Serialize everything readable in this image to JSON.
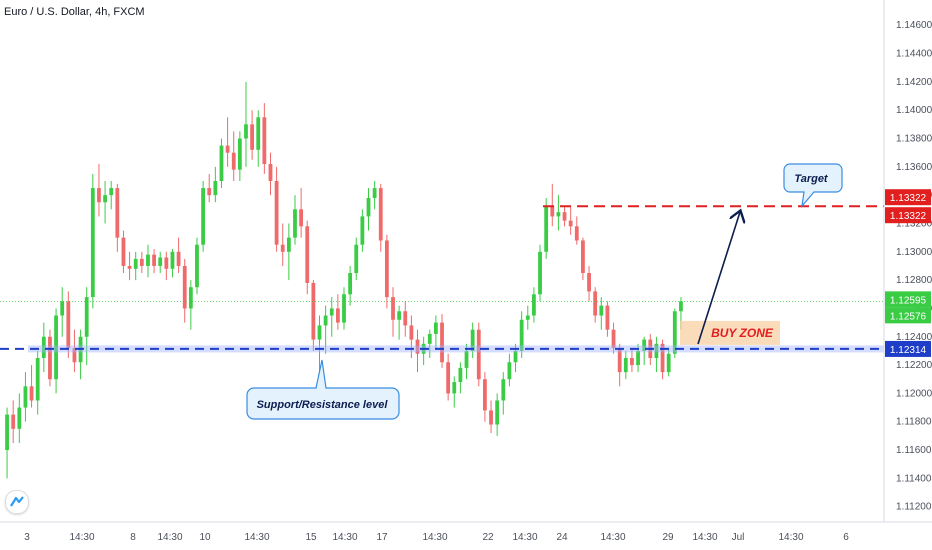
{
  "symbol": "Euro / U.S. Dollar, 4h, FXCM",
  "colors": {
    "up": "#3bcc45",
    "down": "#ef6a6a",
    "resistance": "#e21f1f",
    "support": "#1e3ec8",
    "arrow": "#0d1d4f",
    "zone": "#f8cfa3"
  },
  "chart_data": {
    "type": "candlestick",
    "ylim": [
      1.1112,
      1.1475
    ],
    "yticks": [
      "1.14600",
      "1.14400",
      "1.14200",
      "1.14000",
      "1.13800",
      "1.13600",
      "1.13400",
      "1.13200",
      "1.13000",
      "1.12800",
      "1.12600",
      "1.12400",
      "1.12200",
      "1.12000",
      "1.11800",
      "1.11600",
      "1.11400",
      "1.11200"
    ],
    "xticks": [
      "3",
      "14:30",
      "8",
      "14:30",
      "10",
      "14:30",
      "15",
      "14:30",
      "17",
      "14:30",
      "22",
      "14:30",
      "24",
      "14:30",
      "29",
      "14:30",
      "Jul",
      "14:30",
      "6"
    ],
    "candles": [
      [
        1.116,
        1.119,
        1.114,
        1.1185
      ],
      [
        1.1185,
        1.1195,
        1.1165,
        1.1175
      ],
      [
        1.1175,
        1.12,
        1.1165,
        1.119
      ],
      [
        1.119,
        1.1215,
        1.118,
        1.1205
      ],
      [
        1.1205,
        1.122,
        1.119,
        1.1195
      ],
      [
        1.1195,
        1.123,
        1.1185,
        1.1225
      ],
      [
        1.1225,
        1.125,
        1.1215,
        1.124
      ],
      [
        1.124,
        1.1245,
        1.1205,
        1.121
      ],
      [
        1.121,
        1.126,
        1.12,
        1.1255
      ],
      [
        1.1255,
        1.1275,
        1.124,
        1.1265
      ],
      [
        1.1265,
        1.1272,
        1.1225,
        1.1232
      ],
      [
        1.1232,
        1.1245,
        1.1215,
        1.1222
      ],
      [
        1.1222,
        1.1245,
        1.121,
        1.124
      ],
      [
        1.124,
        1.1275,
        1.122,
        1.1268
      ],
      [
        1.1268,
        1.1355,
        1.126,
        1.1345
      ],
      [
        1.1345,
        1.1362,
        1.1325,
        1.1335
      ],
      [
        1.1335,
        1.135,
        1.132,
        1.134
      ],
      [
        1.134,
        1.135,
        1.133,
        1.1345
      ],
      [
        1.1345,
        1.1348,
        1.13,
        1.131
      ],
      [
        1.131,
        1.1315,
        1.1285,
        1.129
      ],
      [
        1.129,
        1.13,
        1.128,
        1.1288
      ],
      [
        1.1288,
        1.13,
        1.128,
        1.1295
      ],
      [
        1.1295,
        1.13,
        1.1285,
        1.129
      ],
      [
        1.129,
        1.1305,
        1.1282,
        1.1298
      ],
      [
        1.1298,
        1.1302,
        1.1285,
        1.129
      ],
      [
        1.129,
        1.13,
        1.1285,
        1.1296
      ],
      [
        1.1296,
        1.13,
        1.128,
        1.1288
      ],
      [
        1.1288,
        1.1302,
        1.1282,
        1.13
      ],
      [
        1.13,
        1.131,
        1.1285,
        1.129
      ],
      [
        1.129,
        1.1295,
        1.125,
        1.126
      ],
      [
        1.126,
        1.128,
        1.1245,
        1.1275
      ],
      [
        1.1275,
        1.131,
        1.127,
        1.1305
      ],
      [
        1.1305,
        1.135,
        1.13,
        1.1345
      ],
      [
        1.1345,
        1.1355,
        1.1335,
        1.134
      ],
      [
        1.134,
        1.136,
        1.1335,
        1.135
      ],
      [
        1.135,
        1.138,
        1.1345,
        1.1375
      ],
      [
        1.1375,
        1.1395,
        1.136,
        1.137
      ],
      [
        1.137,
        1.1385,
        1.135,
        1.1358
      ],
      [
        1.1358,
        1.1385,
        1.135,
        1.138
      ],
      [
        1.138,
        1.142,
        1.136,
        1.139
      ],
      [
        1.139,
        1.14,
        1.1365,
        1.1372
      ],
      [
        1.1372,
        1.14,
        1.136,
        1.1395
      ],
      [
        1.1395,
        1.1405,
        1.1355,
        1.1362
      ],
      [
        1.1362,
        1.137,
        1.134,
        1.135
      ],
      [
        1.135,
        1.136,
        1.13,
        1.1305
      ],
      [
        1.1305,
        1.132,
        1.129,
        1.13
      ],
      [
        1.13,
        1.132,
        1.128,
        1.131
      ],
      [
        1.131,
        1.134,
        1.1305,
        1.133
      ],
      [
        1.133,
        1.1345,
        1.131,
        1.1318
      ],
      [
        1.1318,
        1.1322,
        1.127,
        1.1278
      ],
      [
        1.1278,
        1.128,
        1.123,
        1.1238
      ],
      [
        1.1238,
        1.1255,
        1.1212,
        1.1248
      ],
      [
        1.1248,
        1.1262,
        1.1228,
        1.1255
      ],
      [
        1.1255,
        1.1268,
        1.124,
        1.126
      ],
      [
        1.126,
        1.127,
        1.1245,
        1.125
      ],
      [
        1.125,
        1.1275,
        1.1245,
        1.127
      ],
      [
        1.127,
        1.129,
        1.1262,
        1.1285
      ],
      [
        1.1285,
        1.131,
        1.128,
        1.1305
      ],
      [
        1.1305,
        1.133,
        1.13,
        1.1325
      ],
      [
        1.1325,
        1.1345,
        1.1315,
        1.1338
      ],
      [
        1.1338,
        1.135,
        1.133,
        1.1345
      ],
      [
        1.1345,
        1.1348,
        1.13,
        1.1308
      ],
      [
        1.1308,
        1.1312,
        1.126,
        1.1268
      ],
      [
        1.1268,
        1.1275,
        1.124,
        1.1252
      ],
      [
        1.1252,
        1.1262,
        1.1238,
        1.1258
      ],
      [
        1.1258,
        1.1265,
        1.124,
        1.1248
      ],
      [
        1.1248,
        1.1255,
        1.1225,
        1.1238
      ],
      [
        1.1238,
        1.1245,
        1.1215,
        1.1228
      ],
      [
        1.1228,
        1.124,
        1.122,
        1.1235
      ],
      [
        1.1235,
        1.1245,
        1.1225,
        1.1242
      ],
      [
        1.1242,
        1.1255,
        1.1232,
        1.125
      ],
      [
        1.125,
        1.1256,
        1.1218,
        1.1222
      ],
      [
        1.1222,
        1.1228,
        1.1195,
        1.12
      ],
      [
        1.12,
        1.1212,
        1.119,
        1.1208
      ],
      [
        1.1208,
        1.1222,
        1.12,
        1.1218
      ],
      [
        1.1218,
        1.1235,
        1.121,
        1.123
      ],
      [
        1.123,
        1.125,
        1.1225,
        1.1245
      ],
      [
        1.1245,
        1.125,
        1.1205,
        1.121
      ],
      [
        1.121,
        1.1215,
        1.118,
        1.1188
      ],
      [
        1.1188,
        1.1195,
        1.1172,
        1.1178
      ],
      [
        1.1178,
        1.12,
        1.117,
        1.1195
      ],
      [
        1.1195,
        1.1215,
        1.1185,
        1.121
      ],
      [
        1.121,
        1.1228,
        1.1205,
        1.1222
      ],
      [
        1.1222,
        1.1235,
        1.1215,
        1.123
      ],
      [
        1.123,
        1.1258,
        1.1225,
        1.1252
      ],
      [
        1.1252,
        1.1262,
        1.1245,
        1.1255
      ],
      [
        1.1255,
        1.1275,
        1.125,
        1.127
      ],
      [
        1.127,
        1.1305,
        1.1265,
        1.13
      ],
      [
        1.13,
        1.1338,
        1.1295,
        1.1332
      ],
      [
        1.1332,
        1.1348,
        1.1318,
        1.1325
      ],
      [
        1.1325,
        1.134,
        1.1315,
        1.1328
      ],
      [
        1.1328,
        1.1332,
        1.1318,
        1.1322
      ],
      [
        1.1322,
        1.1332,
        1.1312,
        1.1318
      ],
      [
        1.1318,
        1.1325,
        1.1305,
        1.1308
      ],
      [
        1.1308,
        1.131,
        1.128,
        1.1285
      ],
      [
        1.1285,
        1.129,
        1.1265,
        1.1272
      ],
      [
        1.1272,
        1.1275,
        1.125,
        1.1255
      ],
      [
        1.1255,
        1.1268,
        1.1245,
        1.1262
      ],
      [
        1.1262,
        1.1265,
        1.124,
        1.1245
      ],
      [
        1.1245,
        1.125,
        1.1228,
        1.1232
      ],
      [
        1.1232,
        1.1235,
        1.1205,
        1.1215
      ],
      [
        1.1215,
        1.123,
        1.121,
        1.1225
      ],
      [
        1.1225,
        1.1232,
        1.1215,
        1.122
      ],
      [
        1.122,
        1.1235,
        1.1215,
        1.123
      ],
      [
        1.123,
        1.124,
        1.122,
        1.1238
      ],
      [
        1.1238,
        1.1242,
        1.122,
        1.1225
      ],
      [
        1.1225,
        1.124,
        1.1215,
        1.1235
      ],
      [
        1.1235,
        1.1238,
        1.121,
        1.1215
      ],
      [
        1.1215,
        1.1232,
        1.1212,
        1.1228
      ],
      [
        1.1228,
        1.126,
        1.1225,
        1.1258
      ],
      [
        1.1258,
        1.1268,
        1.1245,
        1.1265
      ]
    ],
    "support_level": 1.12314,
    "resistance_level": 1.13322,
    "price_labels": [
      {
        "text": "1.13322",
        "color": "#e21f1f"
      },
      {
        "text": "1.13322",
        "color": "#e21f1f"
      },
      {
        "text": "1.12314",
        "color": "#1e3ec8"
      },
      {
        "text": "1.12595",
        "color": "#3bcc45"
      },
      {
        "text": "1.12576",
        "color": "#3bcc45"
      }
    ],
    "annotations": {
      "target": "Target",
      "support": "Support/Resistance level",
      "buy_zone": "BUY ZONE"
    }
  }
}
